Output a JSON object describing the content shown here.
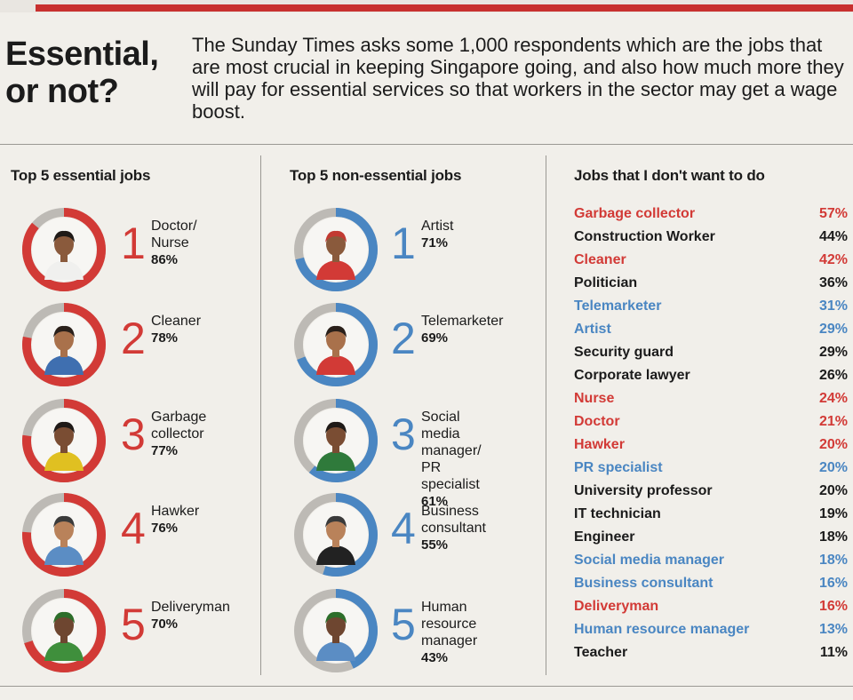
{
  "header": {
    "headline_line1": "Essential,",
    "headline_line2": "or not?",
    "intro": "The Sunday Times asks some 1,000 respondents which are the jobs that are most crucial in keeping Singapore going, and also how much more they will pay for essential services so that workers in the sector may get a wage boost."
  },
  "colors": {
    "red": "#d23a36",
    "blue": "#4a86c2",
    "grey": "#bdbab5",
    "black": "#1b1b1b"
  },
  "chart_data": [
    {
      "type": "donut",
      "title": "Top 5 essential jobs",
      "items": [
        {
          "rank": "1",
          "job_lines": [
            "Doctor/",
            "Nurse"
          ],
          "value_label": "86%",
          "value": 86
        },
        {
          "rank": "2",
          "job_lines": [
            "Cleaner"
          ],
          "value_label": "78%",
          "value": 78
        },
        {
          "rank": "3",
          "job_lines": [
            "Garbage",
            "collector"
          ],
          "value_label": "77%",
          "value": 77
        },
        {
          "rank": "4",
          "job_lines": [
            "Hawker"
          ],
          "value_label": "76%",
          "value": 76
        },
        {
          "rank": "5",
          "job_lines": [
            "Deliveryman"
          ],
          "value_label": "70%",
          "value": 70
        }
      ]
    },
    {
      "type": "donut",
      "title": "Top 5 non-essential jobs",
      "items": [
        {
          "rank": "1",
          "job_lines": [
            "Artist"
          ],
          "value_label": "71%",
          "value": 71
        },
        {
          "rank": "2",
          "job_lines": [
            "Telemarketer"
          ],
          "value_label": "69%",
          "value": 69
        },
        {
          "rank": "3",
          "job_lines": [
            "Social media",
            "manager/",
            "PR specialist"
          ],
          "value_label": "61%",
          "value": 61
        },
        {
          "rank": "4",
          "job_lines": [
            "Business",
            "consultant"
          ],
          "value_label": "55%",
          "value": 55
        },
        {
          "rank": "5",
          "job_lines": [
            "Human",
            "resource",
            "manager"
          ],
          "value_label": "43%",
          "value": 43
        }
      ]
    },
    {
      "type": "table",
      "title": "Jobs that I don't want to do",
      "rows": [
        {
          "job": "Garbage collector",
          "value_label": "57%",
          "value": 57,
          "color": "red"
        },
        {
          "job": "Construction Worker",
          "value_label": "44%",
          "value": 44,
          "color": "black"
        },
        {
          "job": "Cleaner",
          "value_label": "42%",
          "value": 42,
          "color": "red"
        },
        {
          "job": "Politician",
          "value_label": "36%",
          "value": 36,
          "color": "black"
        },
        {
          "job": "Telemarketer",
          "value_label": "31%",
          "value": 31,
          "color": "blue"
        },
        {
          "job": "Artist",
          "value_label": "29%",
          "value": 29,
          "color": "blue"
        },
        {
          "job": "Security guard",
          "value_label": "29%",
          "value": 29,
          "color": "black"
        },
        {
          "job": "Corporate lawyer",
          "value_label": "26%",
          "value": 26,
          "color": "black"
        },
        {
          "job": "Nurse",
          "value_label": "24%",
          "value": 24,
          "color": "red"
        },
        {
          "job": "Doctor",
          "value_label": "21%",
          "value": 21,
          "color": "red"
        },
        {
          "job": "Hawker",
          "value_label": "20%",
          "value": 20,
          "color": "red"
        },
        {
          "job": "PR specialist",
          "value_label": "20%",
          "value": 20,
          "color": "blue"
        },
        {
          "job": "University professor",
          "value_label": "20%",
          "value": 20,
          "color": "black"
        },
        {
          "job": "IT technician",
          "value_label": "19%",
          "value": 19,
          "color": "black"
        },
        {
          "job": "Engineer",
          "value_label": "18%",
          "value": 18,
          "color": "black"
        },
        {
          "job": "Social media manager",
          "value_label": "18%",
          "value": 18,
          "color": "blue"
        },
        {
          "job": "Business consultant",
          "value_label": "16%",
          "value": 16,
          "color": "blue"
        },
        {
          "job": "Deliveryman",
          "value_label": "16%",
          "value": 16,
          "color": "red"
        },
        {
          "job": "Human resource manager",
          "value_label": "13%",
          "value": 13,
          "color": "blue"
        },
        {
          "job": "Teacher",
          "value_label": "11%",
          "value": 11,
          "color": "black"
        }
      ]
    }
  ]
}
